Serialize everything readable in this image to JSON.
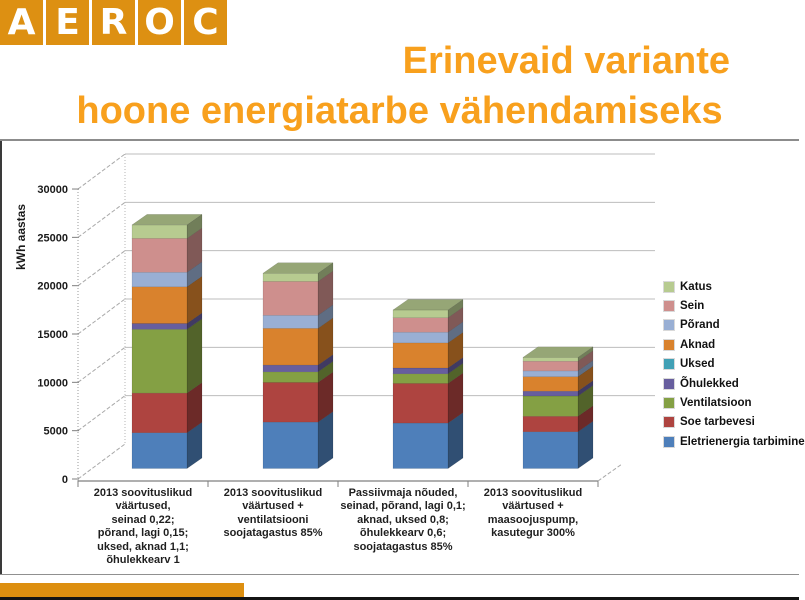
{
  "header": {
    "logo_letters": [
      "A",
      "E",
      "R",
      "O",
      "C"
    ],
    "title_line1": "Erinevaid variante",
    "title_line2": "hoone energiatarbe vähendamiseks"
  },
  "colors": {
    "logo_orange": "#DD9012",
    "title_orange": "#F8A01D",
    "footer_orange": "#DD8F10",
    "gridline": "#BDBDBD",
    "axis": "#7F7F7F",
    "tick_text": "#1a1a1a"
  },
  "chart_data": {
    "type": "bar",
    "stacked": true,
    "style": "3d-stacked-column",
    "title": "",
    "xlabel": "",
    "ylabel": "kWh aastas",
    "ylim": [
      0,
      30000
    ],
    "ytick_values": [
      0,
      5000,
      10000,
      15000,
      20000,
      25000,
      30000
    ],
    "ytick_labels": [
      "0",
      "5000",
      "10000",
      "15000",
      "20000",
      "25000",
      "30000"
    ],
    "grid": true,
    "legend_position": "right",
    "categories": [
      "2013 soovituslikud\nväärtused,\nseinad 0,22;\npõrand, lagi 0,15;\nuksed, aknad 1,1;\nõhulekkearv 1",
      "2013 soovituslikud\nväärtused +\nventilatsiooni\nsoojatagastus 85%",
      "Passiivmaja nõuded,\nseinad, põrand, lagi 0,1;\naknad, uksed 0,8;\nõhulekkearv 0,6;\nsoojatagastus 85%",
      "2013 soovituslikud\nväärtused +\nmaasoojuspump,\nkasutegur 300%"
    ],
    "series": [
      {
        "name": "Eletrienergia tarbimine",
        "color": "#4E7FBA",
        "values": [
          3700,
          4800,
          4700,
          3800
        ]
      },
      {
        "name": "Soe tarbevesi",
        "color": "#AE4440",
        "values": [
          4100,
          4100,
          4100,
          1600
        ]
      },
      {
        "name": "Ventilatsioon",
        "color": "#84A044",
        "values": [
          6600,
          1100,
          1000,
          2100
        ]
      },
      {
        "name": "Õhulekked",
        "color": "#675E9E",
        "values": [
          600,
          700,
          600,
          500
        ]
      },
      {
        "name": "Uksed",
        "color": "#41A0B5",
        "values": [
          0,
          0,
          0,
          0
        ]
      },
      {
        "name": "Aknad",
        "color": "#D9822D",
        "values": [
          3800,
          3800,
          2600,
          1500
        ]
      },
      {
        "name": "Põrand",
        "color": "#99AFD4",
        "values": [
          1500,
          1350,
          1100,
          600
        ]
      },
      {
        "name": "Sein",
        "color": "#CE8F8D",
        "values": [
          3500,
          3500,
          1500,
          1000
        ]
      },
      {
        "name": "Katus",
        "color": "#B7CB90",
        "values": [
          1400,
          850,
          800,
          400
        ]
      }
    ],
    "bar_totals": [
      25200,
      20200,
      16400,
      11500
    ]
  }
}
